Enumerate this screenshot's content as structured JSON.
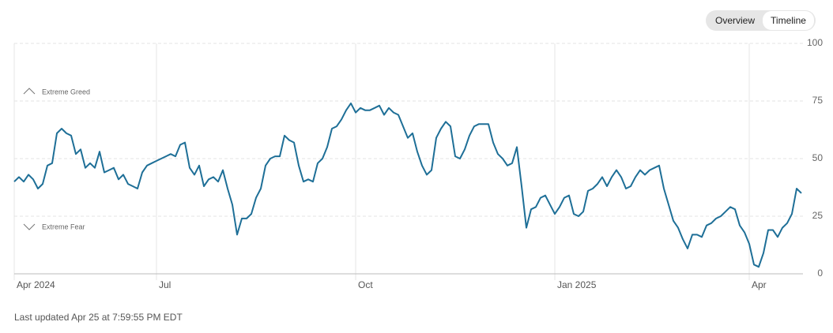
{
  "tabs": [
    "Overview",
    "Timeline"
  ],
  "footer": "Last updated Apr 25 at 7:59:55 PM EDT",
  "chart_data": {
    "type": "line",
    "annotations": [
      "Extreme Greed",
      "Extreme Fear"
    ],
    "categories": [
      "Apr 2024",
      null,
      null,
      null,
      null,
      null,
      null,
      null,
      null,
      null,
      null,
      null,
      null,
      null,
      null,
      null,
      null,
      null,
      null,
      null,
      null,
      null,
      null,
      null,
      null,
      null,
      null,
      null,
      null,
      null,
      "Jul",
      null,
      null,
      null,
      null,
      null,
      null,
      null,
      null,
      null,
      null,
      null,
      null,
      null,
      null,
      null,
      null,
      null,
      null,
      null,
      null,
      null,
      null,
      null,
      null,
      null,
      null,
      null,
      null,
      null,
      null,
      null,
      null,
      null,
      null,
      null,
      null,
      null,
      null,
      null,
      null,
      null,
      "Oct",
      null,
      null,
      null,
      null,
      null,
      null,
      null,
      null,
      null,
      null,
      null,
      null,
      null,
      null,
      null,
      null,
      null,
      null,
      null,
      null,
      null,
      null,
      null,
      null,
      null,
      null,
      null,
      null,
      null,
      null,
      null,
      null,
      null,
      null,
      null,
      null,
      null,
      null,
      null,
      null,
      null,
      "Jan 2025",
      null,
      null,
      null,
      null,
      null,
      null,
      null,
      null,
      null,
      null,
      null,
      null,
      null,
      null,
      null,
      null,
      null,
      null,
      null,
      null,
      null,
      null,
      null,
      null,
      null,
      null,
      null,
      null,
      null,
      null,
      null,
      null,
      null,
      null,
      null,
      null,
      null,
      null,
      null,
      null,
      "Apr",
      null,
      null,
      null,
      null,
      null,
      null,
      null,
      null,
      null,
      null,
      null
    ],
    "values": [
      40,
      42,
      40,
      43,
      41,
      37,
      39,
      47,
      48,
      61,
      63,
      61,
      60,
      52,
      54,
      46,
      48,
      46,
      53,
      44,
      45,
      46,
      41,
      43,
      39,
      38,
      37,
      44,
      47,
      48,
      49,
      50,
      51,
      52,
      51,
      56,
      57,
      46,
      43,
      47,
      38,
      41,
      42,
      40,
      45,
      37,
      30,
      17,
      24,
      24,
      26,
      33,
      37,
      47,
      50,
      51,
      51,
      60,
      58,
      57,
      47,
      40,
      41,
      40,
      48,
      50,
      55,
      63,
      64,
      67,
      71,
      74,
      70,
      72,
      71,
      71,
      72,
      73,
      69,
      72,
      70,
      69,
      64,
      59,
      61,
      53,
      47,
      43,
      45,
      59,
      63,
      66,
      64,
      51,
      50,
      54,
      60,
      64,
      65,
      65,
      65,
      57,
      52,
      50,
      47,
      48,
      55,
      38,
      20,
      28,
      29,
      33,
      34,
      30,
      26,
      29,
      33,
      34,
      26,
      25,
      27,
      36,
      37,
      39,
      42,
      38,
      42,
      45,
      42,
      37,
      38,
      42,
      45,
      43,
      45,
      46,
      47,
      37,
      30,
      23,
      20,
      15,
      11,
      17,
      17,
      16,
      21,
      22,
      24,
      25,
      27,
      29,
      28,
      21,
      18,
      13,
      4,
      3,
      9,
      19,
      19,
      16,
      20,
      22,
      26,
      37,
      35
    ],
    "color": "#1e6f97",
    "ylim": [
      0,
      100
    ],
    "yticks": [
      0,
      25,
      50,
      75,
      100
    ],
    "grid": true
  }
}
